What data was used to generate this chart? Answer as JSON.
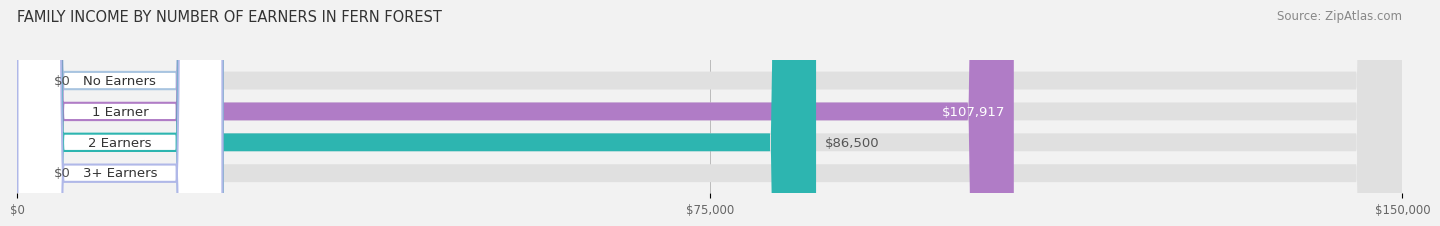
{
  "title": "FAMILY INCOME BY NUMBER OF EARNERS IN FERN FOREST",
  "source": "Source: ZipAtlas.com",
  "categories": [
    "No Earners",
    "1 Earner",
    "2 Earners",
    "3+ Earners"
  ],
  "values": [
    0,
    107917,
    86500,
    0
  ],
  "bar_colors": [
    "#a8c4e0",
    "#b07cc6",
    "#2db5b0",
    "#b0b8e8"
  ],
  "value_labels": [
    "$0",
    "$107,917",
    "$86,500",
    "$0"
  ],
  "value_label_colors": [
    "#555555",
    "#ffffff",
    "#555555",
    "#555555"
  ],
  "xlim": [
    0,
    150000
  ],
  "xticks": [
    0,
    75000,
    150000
  ],
  "xtick_labels": [
    "$0",
    "$75,000",
    "$150,000"
  ],
  "background_color": "#f2f2f2",
  "bar_background_color": "#e0e0e0",
  "title_fontsize": 10.5,
  "source_fontsize": 8.5,
  "tick_fontsize": 8.5,
  "label_fontsize": 9.5,
  "bar_height": 0.58
}
